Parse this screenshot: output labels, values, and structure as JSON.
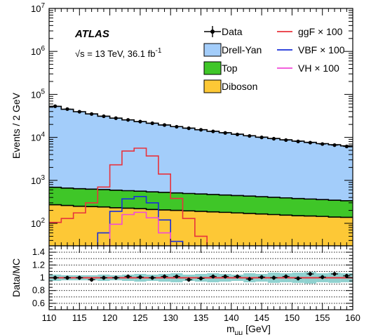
{
  "chart_data": {
    "type": "histogram",
    "xlabel_main": "m",
    "xlabel_sub": "μμ",
    "xlabel_unit": " [GeV]",
    "ylabel_main": "Events / 2 GeV",
    "ylabel_ratio": "Data/MC",
    "xlim": [
      110,
      160
    ],
    "ylim_main": [
      30,
      10000000
    ],
    "yscale_main": "log",
    "ylim_ratio": [
      0.5,
      1.5
    ],
    "bin_width": 2,
    "x_ticks": [
      "110",
      "115",
      "120",
      "125",
      "130",
      "135",
      "140",
      "145",
      "150",
      "155",
      "160"
    ],
    "y_ticks_main": [
      {
        "base": "10",
        "exp": "2"
      },
      {
        "base": "10",
        "exp": "3"
      },
      {
        "base": "10",
        "exp": "4"
      },
      {
        "base": "10",
        "exp": "5"
      },
      {
        "base": "10",
        "exp": "6"
      },
      {
        "base": "10",
        "exp": "7"
      }
    ],
    "y_ticks_ratio": [
      "0.6",
      "0.8",
      "1",
      "1.2",
      "1.4"
    ],
    "atlas_label": "ATLAS",
    "energy_label": "√s = 13 TeV, 36.1 fb",
    "energy_sup": "-1",
    "legend": [
      {
        "label": "Data",
        "style": "marker",
        "color": "#000000"
      },
      {
        "label": "Drell-Yan",
        "style": "fill",
        "color": "#a3cdfa"
      },
      {
        "label": "Top",
        "style": "fill",
        "color": "#3fc628"
      },
      {
        "label": "Diboson",
        "style": "fill",
        "color": "#fdc836"
      },
      {
        "label": "ggF × 100",
        "style": "line",
        "color": "#e8333c"
      },
      {
        "label": "VBF × 100",
        "style": "line",
        "color": "#1a2fd8"
      },
      {
        "label": "VH × 100",
        "style": "line",
        "color": "#f04ad8"
      }
    ],
    "bins_low": [
      110,
      112,
      114,
      116,
      118,
      120,
      122,
      124,
      126,
      128,
      130,
      132,
      134,
      136,
      138,
      140,
      142,
      144,
      146,
      148,
      150,
      152,
      154,
      156,
      158
    ],
    "series": [
      {
        "name": "Diboson",
        "color": "#fdc836",
        "values": [
          270,
          260,
          250,
          245,
          240,
          230,
          225,
          220,
          210,
          205,
          200,
          195,
          190,
          185,
          180,
          175,
          170,
          165,
          160,
          155,
          150,
          148,
          145,
          140,
          138
        ]
      },
      {
        "name": "Top",
        "color": "#3fc628",
        "values": [
          420,
          400,
          390,
          380,
          370,
          360,
          350,
          340,
          330,
          320,
          310,
          300,
          292,
          284,
          276,
          268,
          260,
          252,
          244,
          236,
          228,
          220,
          212,
          205,
          198
        ]
      },
      {
        "name": "Drell-Yan",
        "color": "#a3cdfa",
        "values": [
          52000,
          44500,
          39000,
          34500,
          30500,
          27500,
          25000,
          22800,
          20800,
          18900,
          17300,
          15900,
          14600,
          13400,
          12400,
          11400,
          10500,
          9700,
          9000,
          8400,
          7800,
          7300,
          6800,
          6400,
          6000
        ]
      },
      {
        "name": "ggF × 100",
        "color": "#e8333c",
        "values": [
          105,
          130,
          175,
          300,
          700,
          2300,
          4800,
          5600,
          3700,
          1400,
          380,
          130,
          50,
          20,
          10,
          5,
          3,
          2,
          2,
          2,
          2,
          2,
          2,
          2,
          2
        ]
      },
      {
        "name": "VBF × 100",
        "color": "#1a2fd8",
        "values": [
          8,
          10,
          15,
          25,
          60,
          190,
          370,
          420,
          300,
          120,
          38,
          13,
          6,
          4,
          3,
          2,
          2,
          2,
          2,
          2,
          2,
          2,
          2,
          2,
          2
        ]
      },
      {
        "name": "VH × 100",
        "color": "#f04ad8",
        "values": [
          5,
          6,
          8,
          12,
          30,
          95,
          160,
          180,
          135,
          60,
          20,
          8,
          4,
          3,
          2,
          2,
          2,
          2,
          2,
          2,
          2,
          2,
          2,
          2,
          2
        ]
      }
    ],
    "data_points": {
      "x": [
        111,
        113,
        115,
        117,
        119,
        121,
        123,
        125,
        127,
        129,
        131,
        133,
        135,
        137,
        139,
        141,
        143,
        145,
        147,
        149,
        151,
        153,
        155,
        157,
        159
      ],
      "y": [
        53000,
        45500,
        39500,
        35000,
        31000,
        28000,
        25500,
        23300,
        21300,
        19400,
        17700,
        16300,
        15000,
        13800,
        12700,
        11700,
        10800,
        10000,
        9300,
        8650,
        8050,
        7550,
        7000,
        6600,
        6150
      ]
    },
    "ratio": {
      "x": [
        111,
        113,
        115,
        117,
        119,
        121,
        123,
        125,
        127,
        129,
        131,
        133,
        135,
        137,
        139,
        141,
        143,
        145,
        147,
        149,
        151,
        153,
        155,
        157,
        159
      ],
      "y": [
        1.0,
        1.0,
        1.0,
        0.97,
        1.0,
        1.0,
        1.02,
        1.01,
        1.0,
        1.02,
        1.02,
        0.97,
        0.99,
        1.02,
        1.02,
        1.02,
        0.98,
        1.01,
        1.0,
        1.02,
        0.99,
        1.06,
        1.01,
        1.06,
        1.03
      ],
      "unc": [
        0.05,
        0.04,
        0.04,
        0.04,
        0.05,
        0.04,
        0.05,
        0.06,
        0.05,
        0.06,
        0.07,
        0.05,
        0.06,
        0.07,
        0.06,
        0.05,
        0.07,
        0.06,
        0.08,
        0.07,
        0.08,
        0.09,
        0.07,
        0.08,
        0.07
      ],
      "reference": 1,
      "reference_color": "#e8333c",
      "band_color": "#8fd1cf"
    }
  }
}
